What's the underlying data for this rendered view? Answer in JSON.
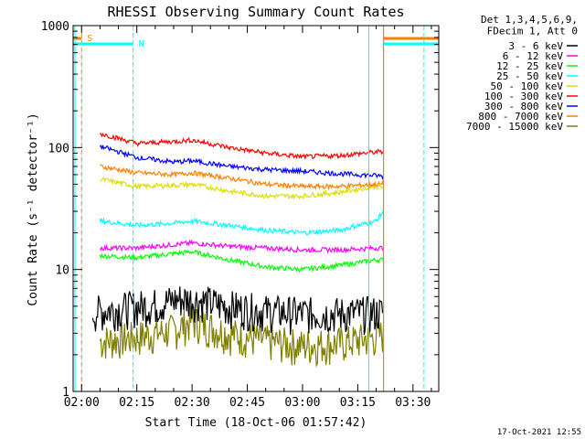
{
  "chart_data": {
    "type": "line",
    "title": "RHESSI Observing Summary Count Rates",
    "xlabel": "Start Time (18-Oct-06 01:57:42)",
    "ylabel": "Count Rate (s⁻¹ detector⁻¹)",
    "y_scale": "log",
    "ylim": [
      1,
      1000
    ],
    "xlim": [
      "01:57:42",
      "03:37:00"
    ],
    "x_ticks": [
      "02:00",
      "02:15",
      "02:30",
      "02:45",
      "03:00",
      "03:15",
      "03:30"
    ],
    "y_ticks": [
      "1",
      "10",
      "100",
      "1000"
    ],
    "legend_header": [
      "Det 1,3,4,5,6,9,",
      "FDecim 1, Att 0"
    ],
    "legend_position": "right",
    "series": [
      {
        "name": "3 - 6 keV",
        "color": "#000000",
        "x": [
          "02:03",
          "02:10",
          "02:20",
          "02:27",
          "02:32",
          "02:40",
          "02:50",
          "03:00",
          "03:10",
          "03:22"
        ],
        "y": [
          4.5,
          4.8,
          5.2,
          5.8,
          5.6,
          5.0,
          4.6,
          4.4,
          4.4,
          4.5
        ]
      },
      {
        "name": "6 - 12 keV",
        "color": "#ff00ff",
        "x": [
          "02:05",
          "02:15",
          "02:25",
          "02:30",
          "02:40",
          "02:50",
          "03:00",
          "03:10",
          "03:20",
          "03:22"
        ],
        "y": [
          15,
          15,
          16,
          16.5,
          15.5,
          15,
          14.5,
          14.5,
          15,
          15
        ]
      },
      {
        "name": "12 - 25 keV",
        "color": "#00ff00",
        "x": [
          "02:05",
          "02:15",
          "02:25",
          "02:30",
          "02:40",
          "02:50",
          "03:00",
          "03:10",
          "03:20",
          "03:22"
        ],
        "y": [
          13,
          12.5,
          13.5,
          14,
          12,
          10.5,
          10,
          10.8,
          12,
          12
        ]
      },
      {
        "name": "25 - 50 keV",
        "color": "#00ffff",
        "x": [
          "02:05",
          "02:15",
          "02:25",
          "02:30",
          "02:40",
          "02:50",
          "03:00",
          "03:10",
          "03:20",
          "03:22"
        ],
        "y": [
          25,
          23,
          24,
          25,
          23,
          21,
          20,
          21,
          25,
          30
        ]
      },
      {
        "name": "50 - 100 keV",
        "color": "#dddd00",
        "x": [
          "02:05",
          "02:15",
          "02:25",
          "02:30",
          "02:40",
          "02:50",
          "03:00",
          "03:10",
          "03:20",
          "03:22"
        ],
        "y": [
          55,
          48,
          49,
          50,
          44,
          40,
          40,
          43,
          48,
          47
        ]
      },
      {
        "name": "100 - 300 keV",
        "color": "#ff0000",
        "x": [
          "02:05",
          "02:15",
          "02:25",
          "02:30",
          "02:40",
          "02:50",
          "03:00",
          "03:10",
          "03:20",
          "03:22"
        ],
        "y": [
          130,
          108,
          112,
          115,
          100,
          90,
          84,
          86,
          92,
          92
        ]
      },
      {
        "name": "300 - 800 keV",
        "color": "#0000ff",
        "x": [
          "02:05",
          "02:15",
          "02:25",
          "02:30",
          "02:40",
          "02:50",
          "03:00",
          "03:10",
          "03:20",
          "03:22"
        ],
        "y": [
          102,
          83,
          76,
          78,
          70,
          66,
          64,
          61,
          59,
          58
        ]
      },
      {
        "name": "800 - 7000 keV",
        "color": "#ff8000",
        "x": [
          "02:05",
          "02:15",
          "02:25",
          "02:30",
          "02:40",
          "02:50",
          "03:00",
          "03:10",
          "03:20",
          "03:22"
        ],
        "y": [
          70,
          62,
          60,
          62,
          56,
          50,
          48,
          48,
          50,
          50
        ]
      },
      {
        "name": "7000 - 15000 keV",
        "color": "#808000",
        "x": [
          "02:05",
          "02:15",
          "02:25",
          "02:30",
          "02:40",
          "02:50",
          "03:00",
          "03:10",
          "03:20",
          "03:22"
        ],
        "y": [
          2.6,
          2.8,
          3.2,
          3.8,
          3.0,
          2.6,
          2.4,
          2.5,
          2.8,
          3.0
        ]
      }
    ],
    "markers": [
      {
        "label": "S",
        "color": "#ff8000"
      },
      {
        "label": "N",
        "color": "#00ffff"
      }
    ]
  },
  "footer": {
    "timestamp": "17-Oct-2021 12:55"
  }
}
